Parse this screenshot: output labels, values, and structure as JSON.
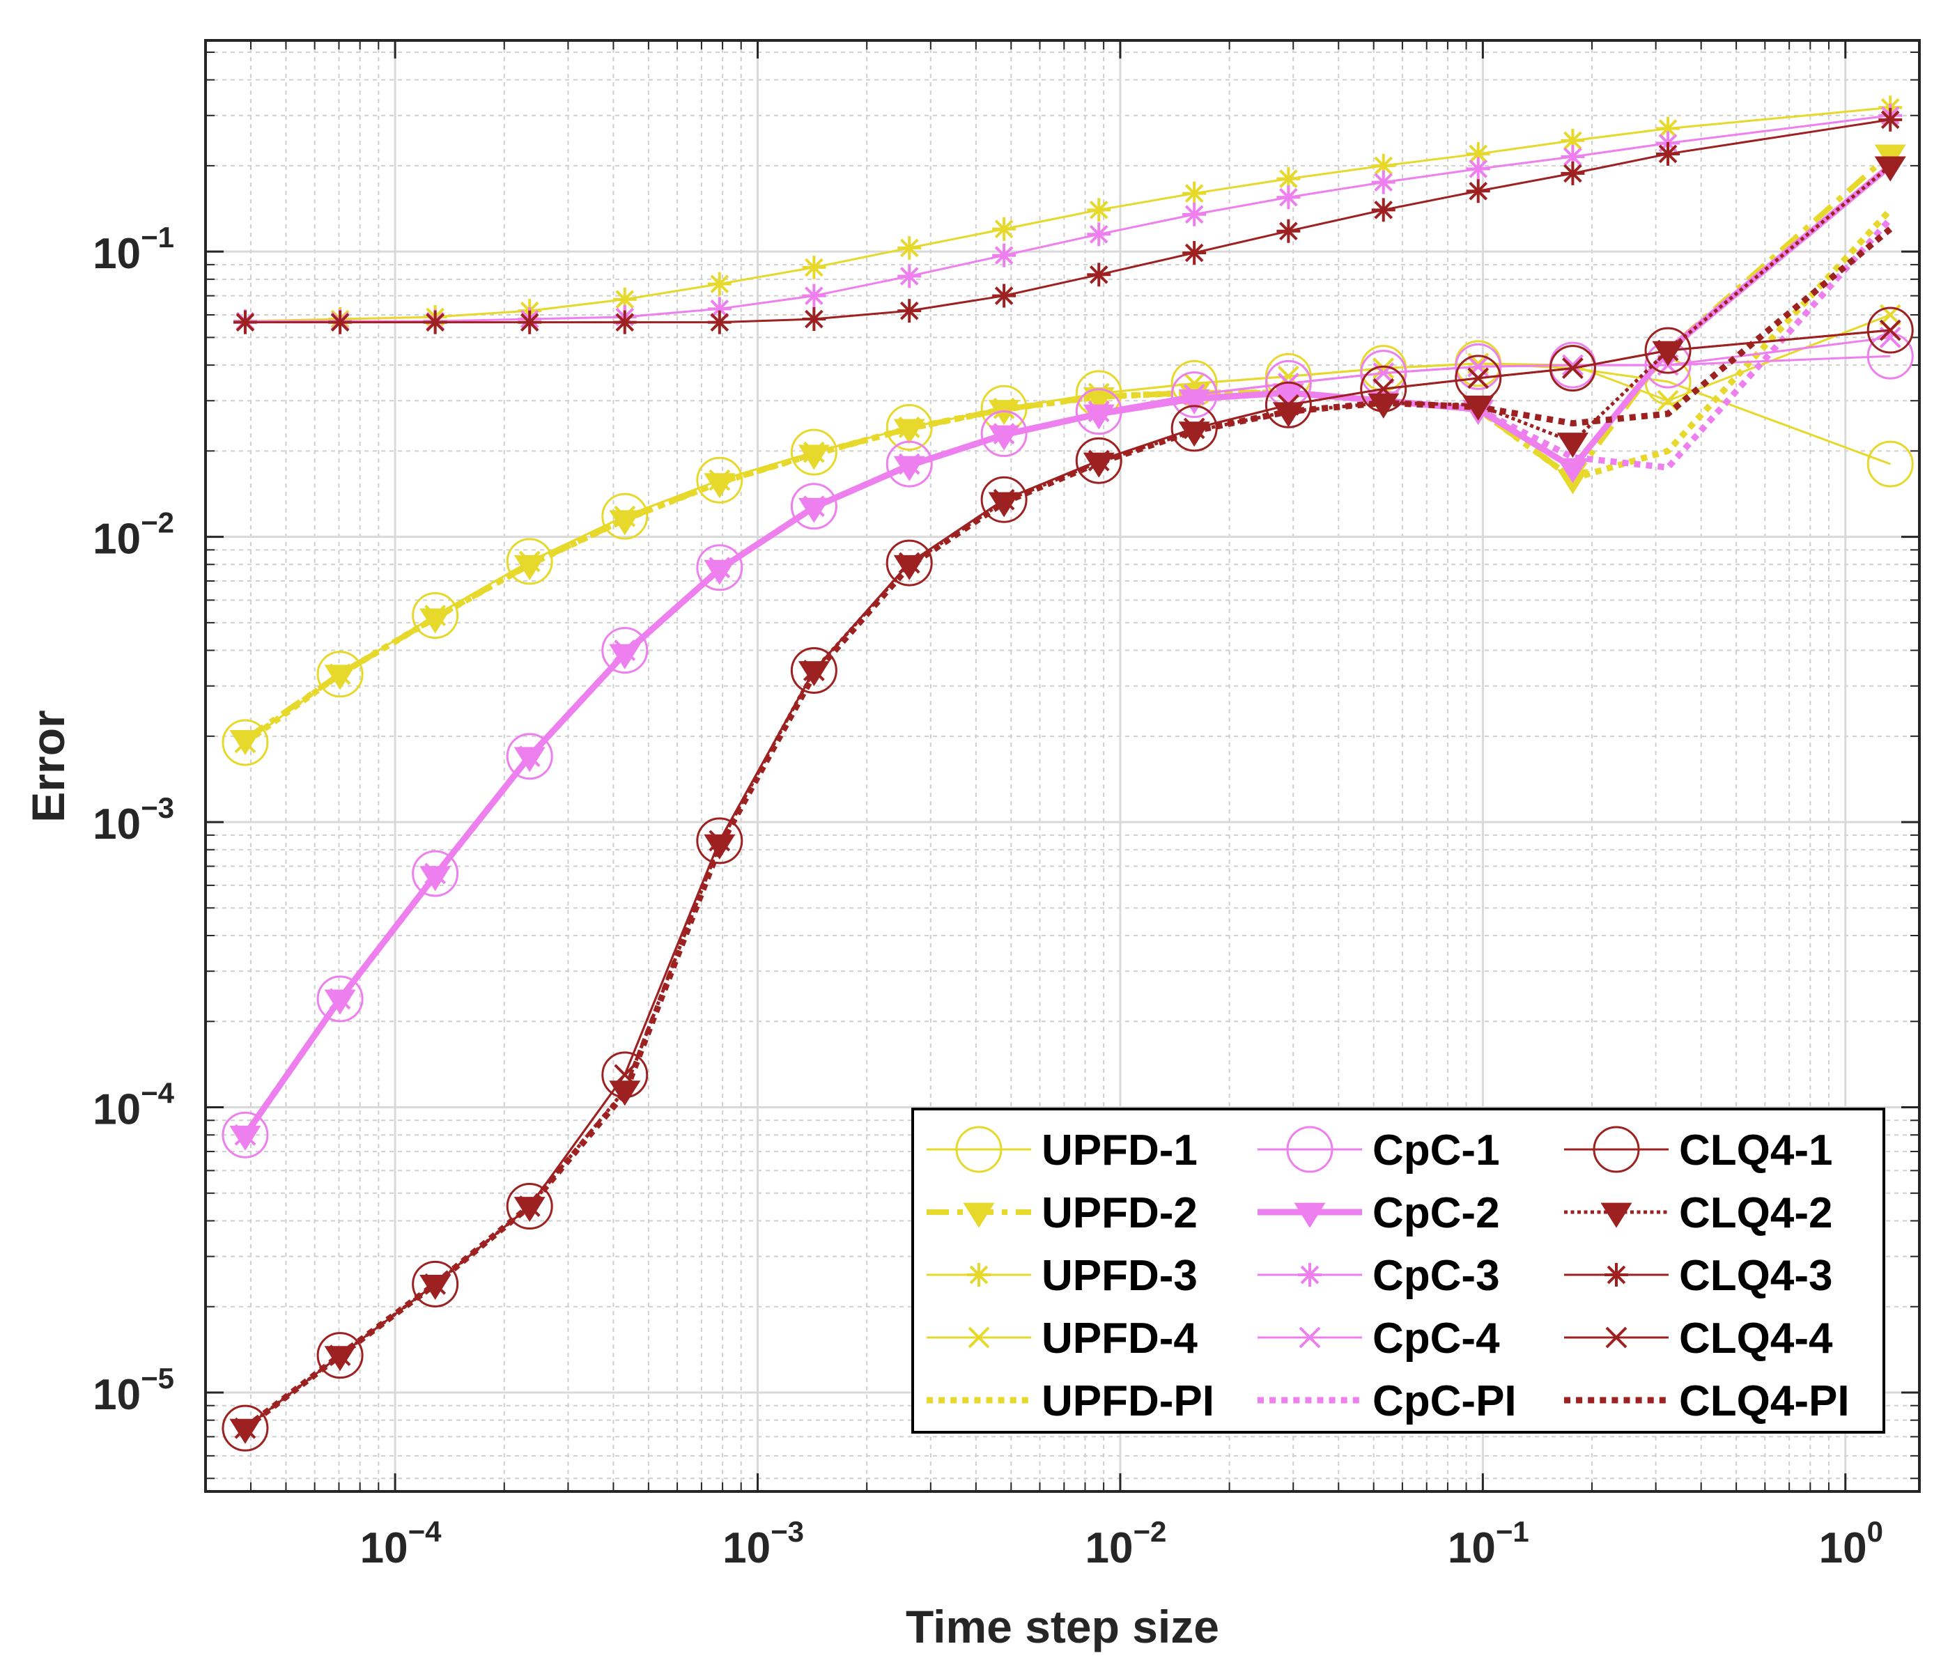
{
  "chart_data": {
    "type": "line",
    "scale": {
      "x": "log",
      "y": "log"
    },
    "xlabel": "Time step size",
    "ylabel": "Error",
    "xlim": [
      3e-05,
      1.6
    ],
    "ylim": [
      4.5e-06,
      0.55
    ],
    "grid": true,
    "minor_grid": true,
    "legend_position": "bottom-right",
    "legend_columns": 3,
    "x_ticks": [
      {
        "value": 0.0001,
        "base": "10",
        "exp": "−4"
      },
      {
        "value": 0.001,
        "base": "10",
        "exp": "−3"
      },
      {
        "value": 0.01,
        "base": "10",
        "exp": "−2"
      },
      {
        "value": 0.1,
        "base": "10",
        "exp": "−1"
      },
      {
        "value": 1,
        "base": "10",
        "exp": "0"
      }
    ],
    "y_ticks": [
      {
        "value": 1e-05,
        "base": "10",
        "exp": "−5"
      },
      {
        "value": 0.0001,
        "base": "10",
        "exp": "−4"
      },
      {
        "value": 0.001,
        "base": "10",
        "exp": "−3"
      },
      {
        "value": 0.01,
        "base": "10",
        "exp": "−2"
      },
      {
        "value": 0.1,
        "base": "10",
        "exp": "−1"
      }
    ],
    "x": [
      3.86e-05,
      7.05e-05,
      0.000129,
      0.000235,
      0.00043,
      0.000785,
      0.00143,
      0.00262,
      0.00478,
      0.00873,
      0.016,
      0.0291,
      0.0532,
      0.0971,
      0.177,
      0.324,
      1.33
    ],
    "series": [
      {
        "name": "UPFD-1",
        "color": "#e6d92b",
        "marker": "circle",
        "line": "solid",
        "width": 3,
        "values": [
          0.0019,
          0.0033,
          0.0053,
          0.0082,
          0.0118,
          0.0158,
          0.0198,
          0.0242,
          0.0282,
          0.0318,
          0.0345,
          0.0365,
          0.039,
          0.0405,
          0.039,
          0.035,
          0.018
        ]
      },
      {
        "name": "UPFD-2",
        "color": "#e6d92b",
        "marker": "triangle-down",
        "line": "dashdot",
        "width": 8,
        "values": [
          0.00195,
          0.0033,
          0.0052,
          0.008,
          0.0115,
          0.0155,
          0.0195,
          0.024,
          0.028,
          0.031,
          0.032,
          0.032,
          0.03,
          0.028,
          0.016,
          0.045,
          0.22
        ]
      },
      {
        "name": "UPFD-3",
        "color": "#e6d92b",
        "marker": "asterisk",
        "line": "solid",
        "width": 3,
        "values": [
          0.057,
          0.058,
          0.059,
          0.062,
          0.068,
          0.077,
          0.088,
          0.103,
          0.12,
          0.14,
          0.16,
          0.18,
          0.2,
          0.22,
          0.245,
          0.27,
          0.32
        ]
      },
      {
        "name": "UPFD-4",
        "color": "#e6d92b",
        "marker": "x",
        "line": "solid",
        "width": 3,
        "values": [
          0.0019,
          0.0033,
          0.0053,
          0.0082,
          0.0118,
          0.0158,
          0.0198,
          0.0242,
          0.0282,
          0.0318,
          0.0345,
          0.0365,
          0.039,
          0.0405,
          0.04,
          0.03,
          0.06
        ]
      },
      {
        "name": "UPFD-PI",
        "color": "#e6d92b",
        "marker": "none",
        "line": "dotted",
        "width": 9,
        "values": [
          0.0019,
          0.0033,
          0.0052,
          0.008,
          0.0115,
          0.0155,
          0.0195,
          0.024,
          0.028,
          0.031,
          0.032,
          0.032,
          0.03,
          0.028,
          0.016,
          0.02,
          0.14
        ]
      },
      {
        "name": "CpC-1",
        "color": "#ee7fee",
        "marker": "circle",
        "line": "solid",
        "width": 3,
        "values": [
          8e-05,
          0.00024,
          0.00066,
          0.0017,
          0.004,
          0.0078,
          0.0128,
          0.018,
          0.023,
          0.0275,
          0.0315,
          0.0345,
          0.0375,
          0.0395,
          0.04,
          0.04,
          0.043
        ]
      },
      {
        "name": "CpC-2",
        "color": "#ee7fee",
        "marker": "triangle-down",
        "line": "solid",
        "width": 9,
        "values": [
          8e-05,
          0.00024,
          0.00065,
          0.0017,
          0.0039,
          0.0077,
          0.0127,
          0.0178,
          0.0228,
          0.027,
          0.0305,
          0.032,
          0.03,
          0.028,
          0.0175,
          0.045,
          0.2
        ]
      },
      {
        "name": "CpC-3",
        "color": "#ee7fee",
        "marker": "asterisk",
        "line": "solid",
        "width": 3,
        "values": [
          0.057,
          0.057,
          0.057,
          0.058,
          0.059,
          0.063,
          0.07,
          0.082,
          0.097,
          0.115,
          0.135,
          0.155,
          0.175,
          0.195,
          0.215,
          0.24,
          0.3
        ]
      },
      {
        "name": "CpC-4",
        "color": "#ee7fee",
        "marker": "x",
        "line": "solid",
        "width": 3,
        "values": [
          8e-05,
          0.00024,
          0.00066,
          0.0017,
          0.004,
          0.0078,
          0.0128,
          0.018,
          0.023,
          0.0275,
          0.0315,
          0.0345,
          0.0375,
          0.0395,
          0.04,
          0.04,
          0.05
        ]
      },
      {
        "name": "CpC-PI",
        "color": "#ee7fee",
        "marker": "none",
        "line": "dotted",
        "width": 9,
        "values": [
          8e-05,
          0.00024,
          0.00065,
          0.0017,
          0.0039,
          0.0077,
          0.0127,
          0.0178,
          0.0228,
          0.027,
          0.0305,
          0.032,
          0.03,
          0.028,
          0.019,
          0.0175,
          0.13
        ]
      },
      {
        "name": "CLQ4-1",
        "color": "#9e2121",
        "marker": "circle",
        "line": "solid",
        "width": 3,
        "values": [
          7.5e-06,
          1.35e-05,
          2.4e-05,
          4.5e-05,
          0.00013,
          0.00086,
          0.0034,
          0.0081,
          0.0135,
          0.0185,
          0.024,
          0.029,
          0.033,
          0.036,
          0.039,
          0.045,
          0.053
        ]
      },
      {
        "name": "CLQ4-2",
        "color": "#9e2121",
        "marker": "triangle-down",
        "line": "dotted",
        "width": 5,
        "values": [
          7.5e-06,
          1.35e-05,
          2.4e-05,
          4.5e-05,
          0.000115,
          0.00084,
          0.0034,
          0.008,
          0.0133,
          0.0183,
          0.0235,
          0.0275,
          0.0295,
          0.029,
          0.0215,
          0.045,
          0.2
        ]
      },
      {
        "name": "CLQ4-3",
        "color": "#9e2121",
        "marker": "asterisk",
        "line": "solid",
        "width": 3,
        "values": [
          0.0565,
          0.0565,
          0.0565,
          0.0565,
          0.0565,
          0.0565,
          0.058,
          0.062,
          0.07,
          0.083,
          0.099,
          0.118,
          0.14,
          0.163,
          0.188,
          0.22,
          0.29
        ]
      },
      {
        "name": "CLQ4-4",
        "color": "#9e2121",
        "marker": "x",
        "line": "solid",
        "width": 3,
        "values": [
          7.5e-06,
          1.35e-05,
          2.4e-05,
          4.5e-05,
          0.00013,
          0.00086,
          0.0034,
          0.0081,
          0.0135,
          0.0185,
          0.024,
          0.029,
          0.033,
          0.036,
          0.039,
          0.045,
          0.053
        ]
      },
      {
        "name": "CLQ4-PI",
        "color": "#9e2121",
        "marker": "none",
        "line": "dotted",
        "width": 9,
        "values": [
          7.5e-06,
          1.35e-05,
          2.4e-05,
          4.5e-05,
          0.000112,
          0.00082,
          0.0033,
          0.0079,
          0.0132,
          0.0182,
          0.0235,
          0.0275,
          0.0295,
          0.0285,
          0.025,
          0.027,
          0.12
        ]
      }
    ]
  }
}
